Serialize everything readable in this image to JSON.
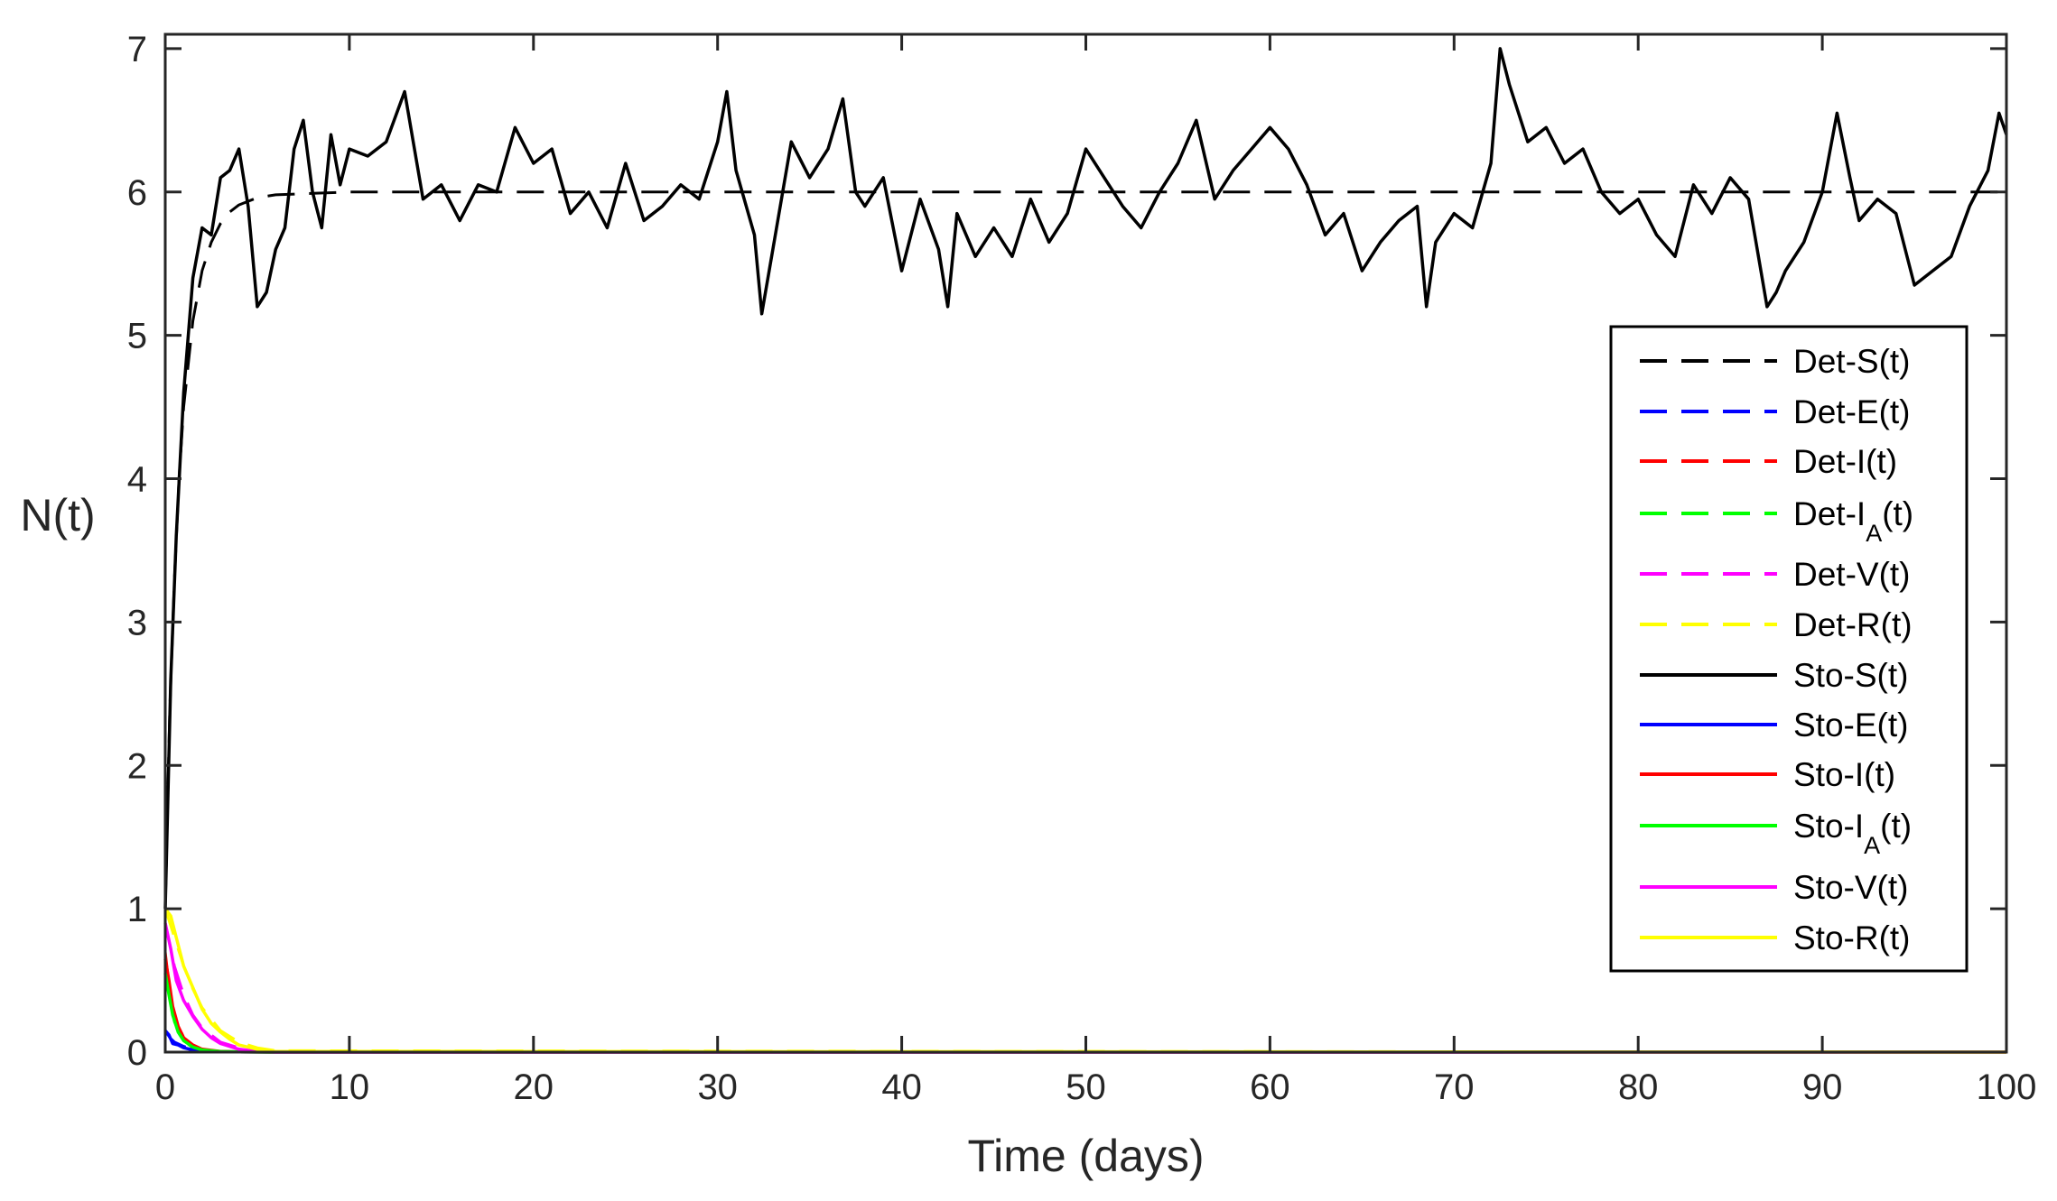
{
  "chart_data": {
    "type": "line",
    "title": "",
    "xlabel": "Time (days)",
    "ylabel": "N(t)",
    "xlim": [
      0,
      100
    ],
    "ylim": [
      0,
      7.1
    ],
    "xticks": [
      0,
      10,
      20,
      30,
      40,
      50,
      60,
      70,
      80,
      90,
      100
    ],
    "xtick_labels": [
      "0",
      "10",
      "20",
      "30",
      "40",
      "50",
      "60",
      "70",
      "80",
      "90",
      "100"
    ],
    "yticks": [
      0,
      1,
      2,
      3,
      4,
      5,
      6,
      7
    ],
    "ytick_labels": [
      "0",
      "1",
      "2",
      "3",
      "4",
      "5",
      "6",
      "7"
    ],
    "grid": false,
    "legend_position": "right",
    "series": [
      {
        "name": "Det-S(t)",
        "label_main": "Det-S(t)",
        "color": "#000000",
        "dash": true,
        "x": [
          0,
          0.25,
          0.5,
          0.75,
          1,
          1.5,
          2,
          2.5,
          3,
          3.5,
          4,
          5,
          6,
          8,
          10,
          20,
          40,
          60,
          80,
          100
        ],
        "y": [
          1.0,
          2.4,
          3.3,
          4.0,
          4.5,
          5.1,
          5.45,
          5.65,
          5.78,
          5.86,
          5.91,
          5.96,
          5.98,
          5.99,
          6.0,
          6.0,
          6.0,
          6.0,
          6.0,
          6.0
        ]
      },
      {
        "name": "Det-E(t)",
        "label_main": "Det-E(t)",
        "color": "#0000ff",
        "dash": true,
        "x": [
          0,
          0.25,
          0.5,
          1,
          1.5,
          2,
          3,
          4,
          6,
          100
        ],
        "y": [
          0.15,
          0.1,
          0.07,
          0.04,
          0.02,
          0.01,
          0.004,
          0.001,
          0,
          0
        ]
      },
      {
        "name": "Det-I(t)",
        "label_main": "Det-I(t)",
        "color": "#ff0000",
        "dash": true,
        "x": [
          0,
          0.25,
          0.5,
          1,
          1.5,
          2,
          3,
          4,
          6,
          100
        ],
        "y": [
          0.7,
          0.42,
          0.25,
          0.1,
          0.04,
          0.02,
          0.005,
          0.001,
          0,
          0
        ]
      },
      {
        "name": "Det-IA(t)",
        "label_main": "Det-I",
        "label_sub": "A",
        "label_tail": "(t)",
        "color": "#00ff00",
        "dash": true,
        "x": [
          0,
          0.25,
          0.5,
          1,
          1.5,
          2,
          3,
          4,
          6,
          100
        ],
        "y": [
          0.6,
          0.36,
          0.21,
          0.08,
          0.03,
          0.012,
          0.003,
          0.001,
          0,
          0
        ]
      },
      {
        "name": "Det-V(t)",
        "label_main": "Det-V(t)",
        "color": "#ff00ff",
        "dash": true,
        "x": [
          0,
          0.5,
          1,
          1.5,
          2,
          3,
          4,
          5,
          6,
          100
        ],
        "y": [
          0.9,
          0.6,
          0.4,
          0.26,
          0.17,
          0.07,
          0.03,
          0.01,
          0,
          0
        ]
      },
      {
        "name": "Det-R(t)",
        "label_main": "Det-R(t)",
        "color": "#ffff00",
        "dash": true,
        "x": [
          0,
          0.5,
          1,
          1.5,
          2,
          3,
          4,
          5,
          6,
          100
        ],
        "y": [
          1.0,
          0.8,
          0.6,
          0.44,
          0.31,
          0.15,
          0.07,
          0.03,
          0.01,
          0
        ]
      },
      {
        "name": "Sto-S(t)",
        "label_main": "Sto-S(t)",
        "color": "#000000",
        "dash": false,
        "x": [
          0,
          0.3,
          0.6,
          1,
          1.5,
          2,
          2.5,
          3,
          3.5,
          4,
          4.5,
          5,
          5.5,
          6,
          6.5,
          7,
          7.5,
          8,
          8.5,
          9,
          9.5,
          10,
          11,
          12,
          13,
          14,
          15,
          16,
          17,
          18,
          19,
          20,
          21,
          22,
          23,
          24,
          25,
          26,
          27,
          28,
          29,
          30,
          30.5,
          31,
          32,
          32.4,
          33,
          34,
          35,
          36,
          36.8,
          37.5,
          38,
          39,
          40,
          41,
          42,
          42.5,
          43,
          44,
          45,
          46,
          47,
          48,
          49,
          50,
          51,
          52,
          53,
          54,
          55,
          56,
          57,
          58,
          59,
          60,
          61,
          62,
          63,
          64,
          65,
          66,
          67,
          68,
          68.5,
          69,
          70,
          71,
          72,
          72.5,
          73,
          74,
          75,
          76,
          77,
          78,
          79,
          80,
          81,
          82,
          83,
          84,
          85,
          86,
          87,
          87.5,
          88,
          89,
          90,
          90.8,
          91.5,
          92,
          93,
          94,
          95,
          96,
          97,
          98,
          99,
          99.6,
          100
        ],
        "y": [
          1.0,
          2.6,
          3.6,
          4.6,
          5.4,
          5.75,
          5.7,
          6.1,
          6.15,
          6.3,
          5.9,
          5.2,
          5.3,
          5.6,
          5.75,
          6.3,
          6.5,
          6.0,
          5.75,
          6.4,
          6.05,
          6.3,
          6.25,
          6.35,
          6.7,
          5.95,
          6.05,
          5.8,
          6.05,
          6.0,
          6.45,
          6.2,
          6.3,
          5.85,
          6.0,
          5.75,
          6.2,
          5.8,
          5.9,
          6.05,
          5.95,
          6.35,
          6.7,
          6.15,
          5.7,
          5.15,
          5.6,
          6.35,
          6.1,
          6.3,
          6.65,
          6.0,
          5.9,
          6.1,
          5.45,
          5.95,
          5.6,
          5.2,
          5.85,
          5.55,
          5.75,
          5.55,
          5.95,
          5.65,
          5.85,
          6.3,
          6.1,
          5.9,
          5.75,
          6.0,
          6.2,
          6.5,
          5.95,
          6.15,
          6.3,
          6.45,
          6.3,
          6.05,
          5.7,
          5.85,
          5.45,
          5.65,
          5.8,
          5.9,
          5.2,
          5.65,
          5.85,
          5.75,
          6.2,
          7.0,
          6.75,
          6.35,
          6.45,
          6.2,
          6.3,
          6.0,
          5.85,
          5.95,
          5.7,
          5.55,
          6.05,
          5.85,
          6.1,
          5.95,
          5.2,
          5.3,
          5.45,
          5.65,
          6.0,
          6.55,
          6.1,
          5.8,
          5.95,
          5.85,
          5.35,
          5.45,
          5.55,
          5.9,
          6.15,
          6.55,
          6.4
        ]
      },
      {
        "name": "Sto-E(t)",
        "label_main": "Sto-E(t)",
        "color": "#0000ff",
        "dash": false,
        "x": [
          0,
          0.2,
          0.4,
          0.7,
          1,
          1.5,
          2,
          3,
          4,
          6,
          100
        ],
        "y": [
          0.15,
          0.12,
          0.06,
          0.05,
          0.03,
          0.015,
          0.01,
          0.003,
          0.001,
          0,
          0
        ]
      },
      {
        "name": "Sto-I(t)",
        "label_main": "Sto-I(t)",
        "color": "#ff0000",
        "dash": false,
        "x": [
          0,
          0.2,
          0.4,
          0.7,
          1,
          1.5,
          2,
          3,
          4,
          6,
          100
        ],
        "y": [
          0.65,
          0.5,
          0.32,
          0.18,
          0.1,
          0.05,
          0.02,
          0.005,
          0.001,
          0,
          0
        ]
      },
      {
        "name": "Sto-IA(t)",
        "label_main": "Sto-I",
        "label_sub": "A",
        "label_tail": "(t)",
        "color": "#00ff00",
        "dash": false,
        "x": [
          0,
          0.2,
          0.4,
          0.7,
          1,
          1.5,
          2,
          3,
          4,
          6,
          100
        ],
        "y": [
          0.55,
          0.4,
          0.26,
          0.14,
          0.08,
          0.035,
          0.015,
          0.004,
          0.001,
          0,
          0
        ]
      },
      {
        "name": "Sto-V(t)",
        "label_main": "Sto-V(t)",
        "color": "#ff00ff",
        "dash": false,
        "x": [
          0,
          0.3,
          0.6,
          1,
          1.5,
          2,
          2.5,
          3,
          4,
          5,
          6,
          100
        ],
        "y": [
          0.9,
          0.72,
          0.5,
          0.36,
          0.25,
          0.16,
          0.1,
          0.06,
          0.02,
          0.005,
          0,
          0
        ]
      },
      {
        "name": "Sto-R(t)",
        "label_main": "Sto-R(t)",
        "color": "#ffff00",
        "dash": false,
        "x": [
          0,
          0.3,
          0.6,
          1,
          1.5,
          2,
          2.5,
          3,
          3.5,
          4,
          5,
          6,
          100
        ],
        "y": [
          1.0,
          0.95,
          0.8,
          0.6,
          0.45,
          0.3,
          0.2,
          0.14,
          0.09,
          0.05,
          0.02,
          0.005,
          0
        ]
      }
    ]
  }
}
